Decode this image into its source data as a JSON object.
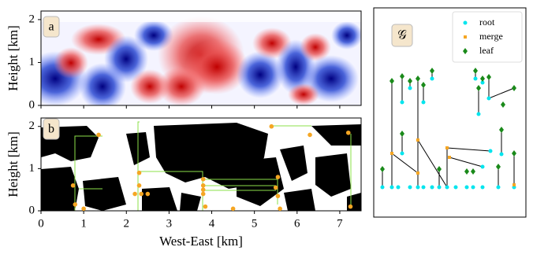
{
  "chart_data": [
    {
      "type": "heatmap",
      "label": "a",
      "ylabel": "Height [km]",
      "xlim": [
        0,
        7.5
      ],
      "xticks": [
        0,
        1,
        2,
        3,
        4,
        5,
        6,
        7
      ],
      "ylim": [
        0,
        2.2
      ],
      "yticks": [
        0,
        1,
        2
      ]
    },
    {
      "type": "scatter",
      "label": "b",
      "ylabel": "Height [km]",
      "xlabel": "West-East [km]",
      "xlim": [
        0,
        7.5
      ],
      "xticks": [
        0,
        1,
        2,
        3,
        4,
        5,
        6,
        7
      ],
      "ylim": [
        0,
        2.2
      ],
      "yticks": [
        0,
        1,
        2
      ],
      "color": "#f5a623",
      "x": [
        0.75,
        0.8,
        1.0,
        1.35,
        2.2,
        2.3,
        2.3,
        2.35,
        2.5,
        3.8,
        3.8,
        3.8,
        3.8,
        3.85,
        4.5,
        5.5,
        5.55,
        5.4,
        5.55,
        5.6,
        6.3,
        7.2,
        7.25
      ],
      "values": [
        0.6,
        0.15,
        0.05,
        1.8,
        0.4,
        0.9,
        0.6,
        0.4,
        0.4,
        0.75,
        0.6,
        0.5,
        0.4,
        0.1,
        0.05,
        0.55,
        0.8,
        2.0,
        0.35,
        0.05,
        1.8,
        1.85,
        0.1
      ]
    },
    {
      "type": "graph",
      "label": "𝒢",
      "legend": "upper right",
      "series": [
        {
          "name": "root",
          "color": "#00e5ee"
        },
        {
          "name": "merge",
          "color": "#f5a623"
        },
        {
          "name": "leaf",
          "color": "#1a8a1a"
        }
      ]
    }
  ]
}
